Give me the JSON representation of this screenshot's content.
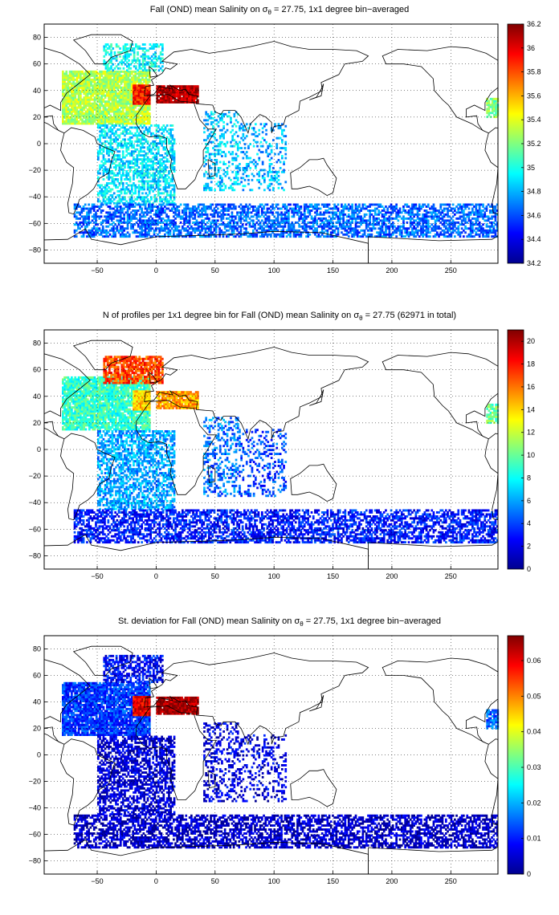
{
  "figure": {
    "colormap": [
      "#00008f",
      "#0000ff",
      "#0080ff",
      "#00ffff",
      "#80ff80",
      "#ffff00",
      "#ff8000",
      "#ff0000",
      "#800000"
    ],
    "land_outline_color": "#000000",
    "grid_style": "dotted"
  },
  "chart_data": [
    {
      "type": "heatmap",
      "title_parts": {
        "before": "Fall (OND) mean Salinity on ",
        "sigma": "σ",
        "sub": "θ",
        "after": " = 27.75, 1x1 degree bin−averaged"
      },
      "x_ticks": [
        "-50",
        "0",
        "50",
        "100",
        "150",
        "200",
        "250"
      ],
      "y_ticks": [
        "80",
        "60",
        "40",
        "20",
        "0",
        "-20",
        "-40",
        "-60",
        "-80"
      ],
      "xlim": [
        -95,
        290
      ],
      "ylim": [
        -90,
        90
      ],
      "grid": true,
      "colorbar": {
        "min": 34.2,
        "max": 36.2,
        "ticks": [
          "36.2",
          "36",
          "35.8",
          "35.6",
          "35.4",
          "35.2",
          "35",
          "34.8",
          "34.6",
          "34.4",
          "34.2"
        ]
      },
      "regions": [
        {
          "lon": [
            -80,
            -5
          ],
          "lat": [
            15,
            55
          ],
          "v": 35.3,
          "density": 0.9
        },
        {
          "lon": [
            -45,
            5
          ],
          "lat": [
            55,
            75
          ],
          "v": 34.95,
          "density": 0.5
        },
        {
          "lon": [
            -20,
            -5
          ],
          "lat": [
            30,
            45
          ],
          "v": 35.9,
          "density": 1.0
        },
        {
          "lon": [
            0,
            35
          ],
          "lat": [
            31,
            44
          ],
          "v": 36.1,
          "density": 0.95
        },
        {
          "lon": [
            -50,
            15
          ],
          "lat": [
            -45,
            15
          ],
          "v": 34.9,
          "density": 0.55
        },
        {
          "lon": [
            40,
            70
          ],
          "lat": [
            -35,
            25
          ],
          "v": 34.85,
          "density": 0.35
        },
        {
          "lon": [
            70,
            110
          ],
          "lat": [
            -35,
            15
          ],
          "v": 34.8,
          "density": 0.25
        },
        {
          "lon": [
            -70,
            290
          ],
          "lat": [
            -70,
            -45
          ],
          "v": 34.65,
          "density": 0.6
        },
        {
          "lon": [
            280,
            290
          ],
          "lat": [
            20,
            35
          ],
          "v": 35.2,
          "density": 0.8
        }
      ]
    },
    {
      "type": "heatmap",
      "title_parts": {
        "before": "N of profiles per 1x1 degree bin for Fall (OND) mean Salinity on ",
        "sigma": "σ",
        "sub": "θ",
        "after": " = 27.75 (62971 in total)"
      },
      "x_ticks": [
        "-50",
        "0",
        "50",
        "100",
        "150",
        "200",
        "250"
      ],
      "y_ticks": [
        "80",
        "60",
        "40",
        "20",
        "0",
        "-20",
        "-40",
        "-60",
        "-80"
      ],
      "xlim": [
        -95,
        290
      ],
      "ylim": [
        -90,
        90
      ],
      "grid": true,
      "colorbar": {
        "min": 0,
        "max": 21,
        "ticks": [
          "20",
          "18",
          "16",
          "14",
          "12",
          "10",
          "8",
          "6",
          "4",
          "2",
          "0"
        ]
      },
      "regions": [
        {
          "lon": [
            -80,
            -5
          ],
          "lat": [
            15,
            55
          ],
          "v": 9,
          "density": 0.9
        },
        {
          "lon": [
            -45,
            5
          ],
          "lat": [
            50,
            70
          ],
          "v": 17,
          "density": 0.8
        },
        {
          "lon": [
            -20,
            -5
          ],
          "lat": [
            30,
            45
          ],
          "v": 14,
          "density": 1.0
        },
        {
          "lon": [
            0,
            35
          ],
          "lat": [
            31,
            44
          ],
          "v": 15,
          "density": 0.9
        },
        {
          "lon": [
            -50,
            15
          ],
          "lat": [
            -45,
            15
          ],
          "v": 6,
          "density": 0.6
        },
        {
          "lon": [
            40,
            70
          ],
          "lat": [
            -35,
            25
          ],
          "v": 5,
          "density": 0.35
        },
        {
          "lon": [
            70,
            110
          ],
          "lat": [
            -35,
            15
          ],
          "v": 4,
          "density": 0.25
        },
        {
          "lon": [
            -70,
            290
          ],
          "lat": [
            -70,
            -45
          ],
          "v": 3,
          "density": 0.6
        },
        {
          "lon": [
            280,
            290
          ],
          "lat": [
            20,
            35
          ],
          "v": 10,
          "density": 0.8
        }
      ]
    },
    {
      "type": "heatmap",
      "title_parts": {
        "before": "St. deviation for Fall (OND) mean Salinity on ",
        "sigma": "σ",
        "sub": "θ",
        "after": " = 27.75, 1x1 degree bin−averaged"
      },
      "x_ticks": [
        "-50",
        "0",
        "50",
        "100",
        "150",
        "200",
        "250"
      ],
      "y_ticks": [
        "80",
        "60",
        "40",
        "20",
        "0",
        "-20",
        "-40",
        "-60",
        "-80"
      ],
      "xlim": [
        -95,
        290
      ],
      "ylim": [
        -90,
        90
      ],
      "grid": true,
      "colorbar": {
        "min": 0,
        "max": 0.067,
        "ticks": [
          "0.06",
          "0.05",
          "0.04",
          "0.03",
          "0.02",
          "0.01",
          "0"
        ]
      },
      "regions": [
        {
          "lon": [
            -80,
            -5
          ],
          "lat": [
            15,
            55
          ],
          "v": 0.012,
          "density": 0.9
        },
        {
          "lon": [
            -45,
            5
          ],
          "lat": [
            55,
            75
          ],
          "v": 0.008,
          "density": 0.6
        },
        {
          "lon": [
            -20,
            -5
          ],
          "lat": [
            30,
            45
          ],
          "v": 0.06,
          "density": 1.0
        },
        {
          "lon": [
            0,
            35
          ],
          "lat": [
            31,
            44
          ],
          "v": 0.065,
          "density": 0.95
        },
        {
          "lon": [
            -50,
            15
          ],
          "lat": [
            -45,
            15
          ],
          "v": 0.005,
          "density": 0.6
        },
        {
          "lon": [
            40,
            70
          ],
          "lat": [
            -35,
            25
          ],
          "v": 0.006,
          "density": 0.35
        },
        {
          "lon": [
            70,
            110
          ],
          "lat": [
            -35,
            15
          ],
          "v": 0.006,
          "density": 0.25
        },
        {
          "lon": [
            -70,
            290
          ],
          "lat": [
            -70,
            -45
          ],
          "v": 0.004,
          "density": 0.6
        },
        {
          "lon": [
            280,
            290
          ],
          "lat": [
            20,
            35
          ],
          "v": 0.015,
          "density": 0.8
        }
      ]
    }
  ]
}
